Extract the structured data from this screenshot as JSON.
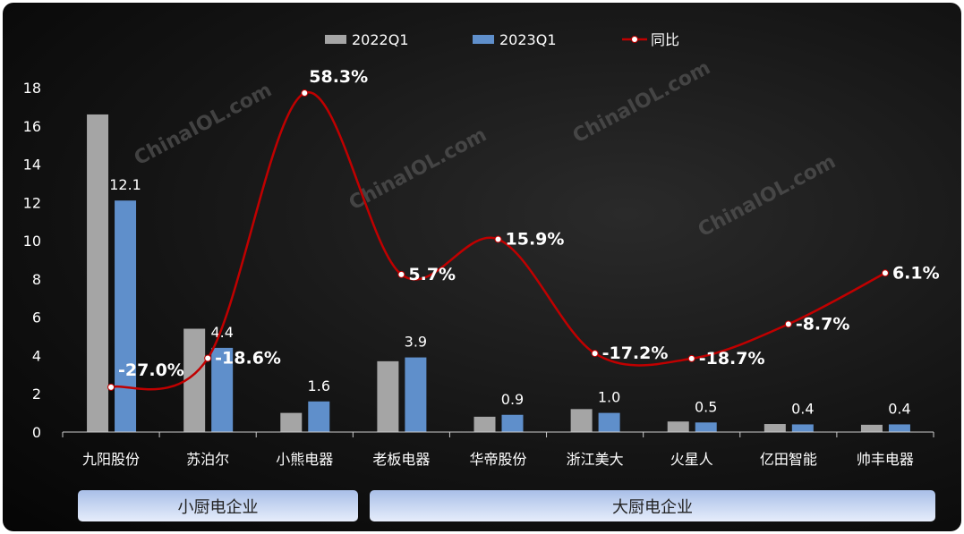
{
  "chart_data": {
    "type": "bar",
    "categories": [
      "九阳股份",
      "苏泊尔",
      "小熊电器",
      "老板电器",
      "华帝股份",
      "浙江美大",
      "火星人",
      "亿田智能",
      "帅丰电器"
    ],
    "series": [
      {
        "name": "2022Q1",
        "type": "bar",
        "color": "#a5a5a5",
        "values": [
          16.6,
          5.4,
          1.0,
          3.7,
          0.8,
          1.2,
          0.55,
          0.42,
          0.38
        ]
      },
      {
        "name": "2023Q1",
        "type": "bar",
        "color": "#5f8fcb",
        "values": [
          12.1,
          4.4,
          1.6,
          3.9,
          0.9,
          1.0,
          0.5,
          0.4,
          0.4
        ],
        "labels": [
          "12.1",
          "4.4",
          "1.6",
          "3.9",
          "0.9",
          "1.0",
          "0.5",
          "0.4",
          "0.4"
        ]
      },
      {
        "name": "同比",
        "type": "line",
        "color": "#c00000",
        "axis": "secondary",
        "values": [
          -27.0,
          -18.6,
          58.3,
          5.7,
          15.9,
          -17.2,
          -18.7,
          -8.7,
          6.1
        ],
        "labels": [
          "-27.0%",
          "-18.6%",
          "58.3%",
          "5.7%",
          "15.9%",
          "-17.2%",
          "-18.7%",
          "-8.7%",
          "6.1%"
        ]
      }
    ],
    "yticks": [
      "0",
      "2",
      "4",
      "6",
      "8",
      "10",
      "12",
      "14",
      "16",
      "18"
    ],
    "ylim": [
      0,
      18
    ],
    "y2lim": [
      -40,
      60
    ],
    "legend": "top",
    "grid": false,
    "groups": [
      {
        "label": "小厨电企业",
        "span": 3
      },
      {
        "label": "大厨电企业",
        "span": 6
      }
    ],
    "watermark": "ChinaIOL.com"
  }
}
